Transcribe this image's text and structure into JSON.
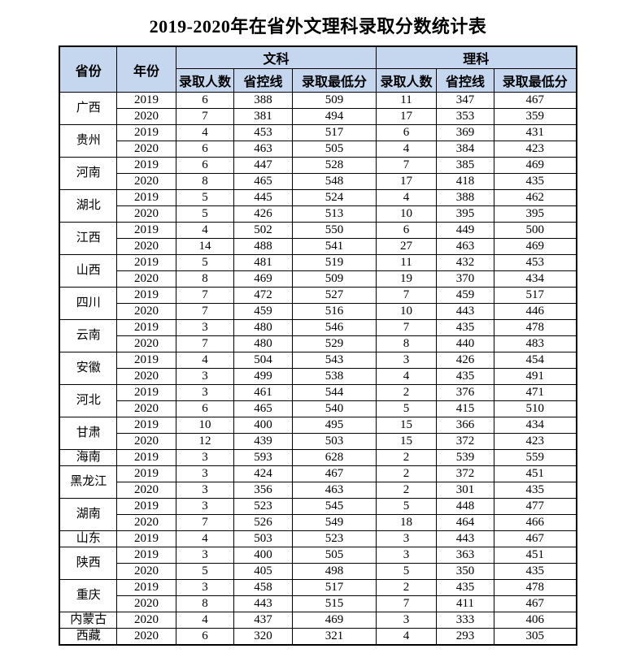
{
  "colors": {
    "header_bg": "#c5d7ef",
    "border": "#000000",
    "text": "#000000",
    "background": "#ffffff"
  },
  "chart_data": {
    "type": "table",
    "title": "2019-2020年在省外文理科录取分数统计表",
    "header": {
      "province": "省份",
      "year": "年份",
      "groups": [
        {
          "label": "文科"
        },
        {
          "label": "理科"
        }
      ],
      "sub_columns": [
        "录取人数",
        "省控线",
        "录取最低分"
      ]
    },
    "provinces": [
      {
        "name": "广西",
        "years": [
          {
            "year": "2019",
            "arts": [
              "6",
              "388",
              "509"
            ],
            "science": [
              "11",
              "347",
              "467"
            ]
          },
          {
            "year": "2020",
            "arts": [
              "7",
              "381",
              "494"
            ],
            "science": [
              "17",
              "353",
              "359"
            ]
          }
        ]
      },
      {
        "name": "贵州",
        "years": [
          {
            "year": "2019",
            "arts": [
              "4",
              "453",
              "517"
            ],
            "science": [
              "6",
              "369",
              "431"
            ]
          },
          {
            "year": "2020",
            "arts": [
              "6",
              "463",
              "505"
            ],
            "science": [
              "4",
              "384",
              "423"
            ]
          }
        ]
      },
      {
        "name": "河南",
        "years": [
          {
            "year": "2019",
            "arts": [
              "6",
              "447",
              "528"
            ],
            "science": [
              "7",
              "385",
              "469"
            ]
          },
          {
            "year": "2020",
            "arts": [
              "8",
              "465",
              "548"
            ],
            "science": [
              "17",
              "418",
              "435"
            ]
          }
        ]
      },
      {
        "name": "湖北",
        "years": [
          {
            "year": "2019",
            "arts": [
              "5",
              "445",
              "524"
            ],
            "science": [
              "4",
              "388",
              "462"
            ]
          },
          {
            "year": "2020",
            "arts": [
              "5",
              "426",
              "513"
            ],
            "science": [
              "10",
              "395",
              "395"
            ]
          }
        ]
      },
      {
        "name": "江西",
        "years": [
          {
            "year": "2019",
            "arts": [
              "4",
              "502",
              "550"
            ],
            "science": [
              "6",
              "449",
              "500"
            ]
          },
          {
            "year": "2020",
            "arts": [
              "14",
              "488",
              "541"
            ],
            "science": [
              "27",
              "463",
              "469"
            ]
          }
        ]
      },
      {
        "name": "山西",
        "years": [
          {
            "year": "2019",
            "arts": [
              "5",
              "481",
              "519"
            ],
            "science": [
              "11",
              "432",
              "453"
            ]
          },
          {
            "year": "2020",
            "arts": [
              "8",
              "469",
              "509"
            ],
            "science": [
              "19",
              "370",
              "434"
            ]
          }
        ]
      },
      {
        "name": "四川",
        "years": [
          {
            "year": "2019",
            "arts": [
              "7",
              "472",
              "527"
            ],
            "science": [
              "7",
              "459",
              "517"
            ]
          },
          {
            "year": "2020",
            "arts": [
              "7",
              "459",
              "516"
            ],
            "science": [
              "10",
              "443",
              "446"
            ]
          }
        ]
      },
      {
        "name": "云南",
        "years": [
          {
            "year": "2019",
            "arts": [
              "3",
              "480",
              "546"
            ],
            "science": [
              "7",
              "435",
              "478"
            ]
          },
          {
            "year": "2020",
            "arts": [
              "7",
              "480",
              "529"
            ],
            "science": [
              "8",
              "440",
              "483"
            ]
          }
        ]
      },
      {
        "name": "安徽",
        "years": [
          {
            "year": "2019",
            "arts": [
              "4",
              "504",
              "543"
            ],
            "science": [
              "3",
              "426",
              "454"
            ]
          },
          {
            "year": "2020",
            "arts": [
              "3",
              "499",
              "538"
            ],
            "science": [
              "4",
              "435",
              "491"
            ]
          }
        ]
      },
      {
        "name": "河北",
        "years": [
          {
            "year": "2019",
            "arts": [
              "3",
              "461",
              "544"
            ],
            "science": [
              "2",
              "376",
              "471"
            ]
          },
          {
            "year": "2020",
            "arts": [
              "6",
              "465",
              "540"
            ],
            "science": [
              "5",
              "415",
              "510"
            ]
          }
        ]
      },
      {
        "name": "甘肃",
        "years": [
          {
            "year": "2019",
            "arts": [
              "10",
              "400",
              "495"
            ],
            "science": [
              "15",
              "366",
              "434"
            ]
          },
          {
            "year": "2020",
            "arts": [
              "12",
              "439",
              "503"
            ],
            "science": [
              "15",
              "372",
              "423"
            ]
          }
        ]
      },
      {
        "name": "海南",
        "years": [
          {
            "year": "2019",
            "arts": [
              "3",
              "593",
              "628"
            ],
            "science": [
              "2",
              "539",
              "559"
            ]
          }
        ]
      },
      {
        "name": "黑龙江",
        "years": [
          {
            "year": "2019",
            "arts": [
              "3",
              "424",
              "467"
            ],
            "science": [
              "2",
              "372",
              "451"
            ]
          },
          {
            "year": "2020",
            "arts": [
              "3",
              "356",
              "463"
            ],
            "science": [
              "2",
              "301",
              "435"
            ]
          }
        ]
      },
      {
        "name": "湖南",
        "years": [
          {
            "year": "2019",
            "arts": [
              "3",
              "523",
              "545"
            ],
            "science": [
              "5",
              "448",
              "477"
            ]
          },
          {
            "year": "2020",
            "arts": [
              "7",
              "526",
              "549"
            ],
            "science": [
              "18",
              "464",
              "466"
            ]
          }
        ]
      },
      {
        "name": "山东",
        "years": [
          {
            "year": "2019",
            "arts": [
              "4",
              "503",
              "523"
            ],
            "science": [
              "3",
              "443",
              "467"
            ]
          }
        ]
      },
      {
        "name": "陕西",
        "years": [
          {
            "year": "2019",
            "arts": [
              "3",
              "400",
              "505"
            ],
            "science": [
              "3",
              "363",
              "451"
            ]
          },
          {
            "year": "2020",
            "arts": [
              "5",
              "405",
              "498"
            ],
            "science": [
              "5",
              "350",
              "435"
            ]
          }
        ]
      },
      {
        "name": "重庆",
        "years": [
          {
            "year": "2019",
            "arts": [
              "3",
              "458",
              "517"
            ],
            "science": [
              "2",
              "435",
              "478"
            ]
          },
          {
            "year": "2020",
            "arts": [
              "8",
              "443",
              "515"
            ],
            "science": [
              "7",
              "411",
              "467"
            ]
          }
        ]
      },
      {
        "name": "内蒙古",
        "years": [
          {
            "year": "2020",
            "arts": [
              "4",
              "437",
              "469"
            ],
            "science": [
              "3",
              "333",
              "406"
            ]
          }
        ]
      },
      {
        "name": "西藏",
        "years": [
          {
            "year": "2020",
            "arts": [
              "6",
              "320",
              "321"
            ],
            "science": [
              "4",
              "293",
              "305"
            ]
          }
        ]
      }
    ]
  }
}
